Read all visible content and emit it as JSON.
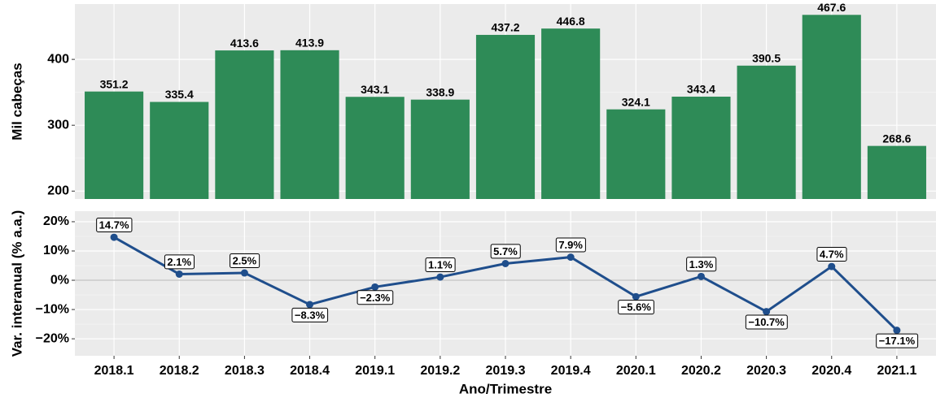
{
  "chart_data": [
    {
      "type": "bar",
      "ylabel": "Mil cabeças",
      "color": "#2e8b57",
      "values": [
        351.2,
        335.4,
        413.6,
        413.9,
        343.1,
        338.9,
        437.2,
        446.8,
        324.1,
        343.4,
        390.5,
        467.6,
        268.6
      ],
      "ylim": [
        188,
        484
      ],
      "yticks": [
        200,
        300,
        400
      ],
      "grid": true
    },
    {
      "type": "line",
      "ylabel": "Var. interanual (% a.a.)",
      "xlabel": "Ano/Trimestre",
      "color": "#1f4e8c",
      "categories": [
        "2018.1",
        "2018.2",
        "2018.3",
        "2018.4",
        "2019.1",
        "2019.2",
        "2019.3",
        "2019.4",
        "2020.1",
        "2020.2",
        "2020.3",
        "2020.4",
        "2021.1"
      ],
      "values": [
        14.7,
        2.1,
        2.5,
        -8.3,
        -2.3,
        1.1,
        5.7,
        7.9,
        -5.6,
        1.3,
        -10.7,
        4.7,
        -17.1
      ],
      "value_labels": [
        "14.7%",
        "2.1%",
        "2.5%",
        "−8.3%",
        "−2.3%",
        "1.1%",
        "5.7%",
        "7.9%",
        "−5.6%",
        "1.3%",
        "−10.7%",
        "4.7%",
        "−17.1%"
      ],
      "ylim": [
        -25.8,
        23.6
      ],
      "yticks": [
        {
          "value": -20,
          "label": "−20%"
        },
        {
          "value": -10,
          "label": "−10%"
        },
        {
          "value": 0,
          "label": "0%"
        },
        {
          "value": 10,
          "label": "10%"
        },
        {
          "value": 20,
          "label": "20%"
        }
      ],
      "reference_line": 0,
      "grid": true
    }
  ]
}
